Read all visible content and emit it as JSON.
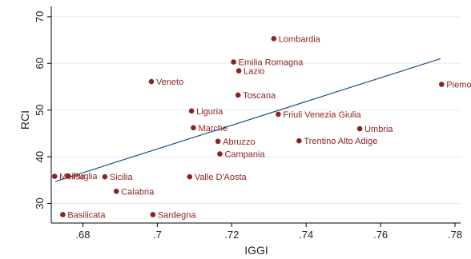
{
  "chart_data": {
    "type": "scatter",
    "xlabel": "IGGI",
    "ylabel": "RCI",
    "xlim": [
      0.6715,
      0.7815
    ],
    "ylim": [
      25.8,
      72.2
    ],
    "x_ticks": [
      0.68,
      0.7,
      0.72,
      0.74,
      0.76,
      0.78
    ],
    "x_tick_labels": [
      ".68",
      ".7",
      ".72",
      ".74",
      ".76",
      ".78"
    ],
    "y_ticks": [
      30,
      40,
      50,
      60,
      70
    ],
    "y_tick_labels": [
      "30",
      "40",
      "50",
      "60",
      "70"
    ],
    "grid": "horizontal",
    "colors": {
      "points": "#8b2323",
      "line": "#1f4e8c",
      "axis": "#000000"
    },
    "points": [
      {
        "label": "Lombardia",
        "x": 0.7313,
        "y": 65.3,
        "label_side": "right"
      },
      {
        "label": "Emilia Romagna",
        "x": 0.7205,
        "y": 60.3,
        "label_side": "right"
      },
      {
        "label": "Lazio",
        "x": 0.7219,
        "y": 58.4,
        "label_side": "right"
      },
      {
        "label": "Veneto",
        "x": 0.6984,
        "y": 56.1,
        "label_side": "right"
      },
      {
        "label": "Piemonte",
        "x": 0.7764,
        "y": 55.5,
        "label_side": "right"
      },
      {
        "label": "Toscana",
        "x": 0.7217,
        "y": 53.2,
        "label_side": "right"
      },
      {
        "label": "Liguria",
        "x": 0.7092,
        "y": 49.8,
        "label_side": "right"
      },
      {
        "label": "Friuli Venezia Giulia",
        "x": 0.7325,
        "y": 49.1,
        "label_side": "right"
      },
      {
        "label": "Marche",
        "x": 0.7097,
        "y": 46.2,
        "label_side": "right"
      },
      {
        "label": "Umbria",
        "x": 0.7544,
        "y": 46.0,
        "label_side": "right"
      },
      {
        "label": "Abruzzo",
        "x": 0.7163,
        "y": 43.3,
        "label_side": "right"
      },
      {
        "label": "Trentino Alto Adige",
        "x": 0.7381,
        "y": 43.4,
        "label_side": "right"
      },
      {
        "label": "Campania",
        "x": 0.7168,
        "y": 40.6,
        "label_side": "right"
      },
      {
        "label": "Molise",
        "x": 0.6724,
        "y": 35.8,
        "label_side": "right"
      },
      {
        "label": "Puglia",
        "x": 0.676,
        "y": 35.9,
        "label_side": "right"
      },
      {
        "label": "Sicilia",
        "x": 0.6859,
        "y": 35.7,
        "label_side": "right"
      },
      {
        "label": "Valle D'Aosta",
        "x": 0.7087,
        "y": 35.7,
        "label_side": "right"
      },
      {
        "label": "Calabria",
        "x": 0.689,
        "y": 32.6,
        "label_side": "right"
      },
      {
        "label": "Basilicata",
        "x": 0.6746,
        "y": 27.6,
        "label_side": "right"
      },
      {
        "label": "Sardegna",
        "x": 0.6988,
        "y": 27.6,
        "label_side": "right"
      }
    ],
    "fit_line": {
      "x": [
        0.6726,
        0.7761
      ],
      "y": [
        34.7,
        61.0
      ]
    }
  }
}
